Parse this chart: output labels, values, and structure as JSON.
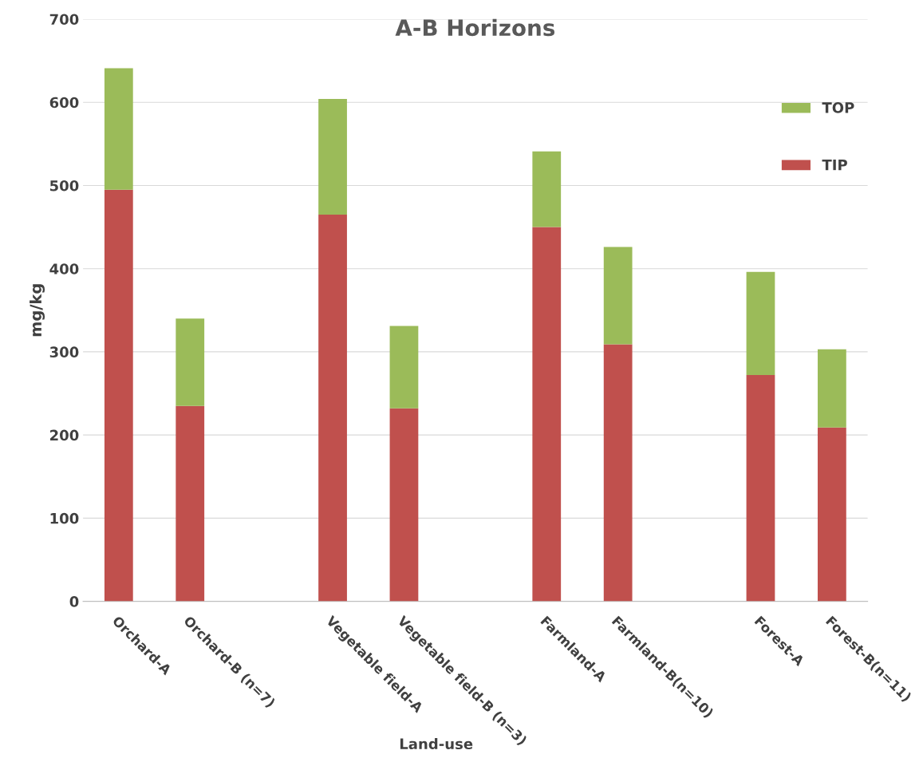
{
  "chart_data": {
    "type": "bar",
    "title": "A-B Horizons",
    "xlabel": "Land-use",
    "ylabel": "mg/kg",
    "categories": [
      "Orchard-A",
      "Orchard-B (n=7)",
      null,
      "Vegetable field-A",
      "Vegetable field-B (n=3)",
      null,
      "Farmland-A",
      "Farmland-B(n=10)",
      null,
      "Forest-A",
      "Forest-B(n=11)"
    ],
    "series": [
      {
        "name": "TIP",
        "color": "#c0504d",
        "values": [
          495,
          235,
          null,
          465,
          232,
          null,
          450,
          309,
          null,
          272,
          209
        ]
      },
      {
        "name": "TOP",
        "color": "#9bbb59",
        "values": [
          146,
          105,
          null,
          139,
          99,
          null,
          91,
          117,
          null,
          124,
          94
        ]
      }
    ],
    "stacked": true,
    "ylim": [
      0,
      700
    ],
    "yticks": [
      0,
      100,
      200,
      300,
      400,
      500,
      600,
      700
    ],
    "grid": "y",
    "legend": "top right"
  }
}
